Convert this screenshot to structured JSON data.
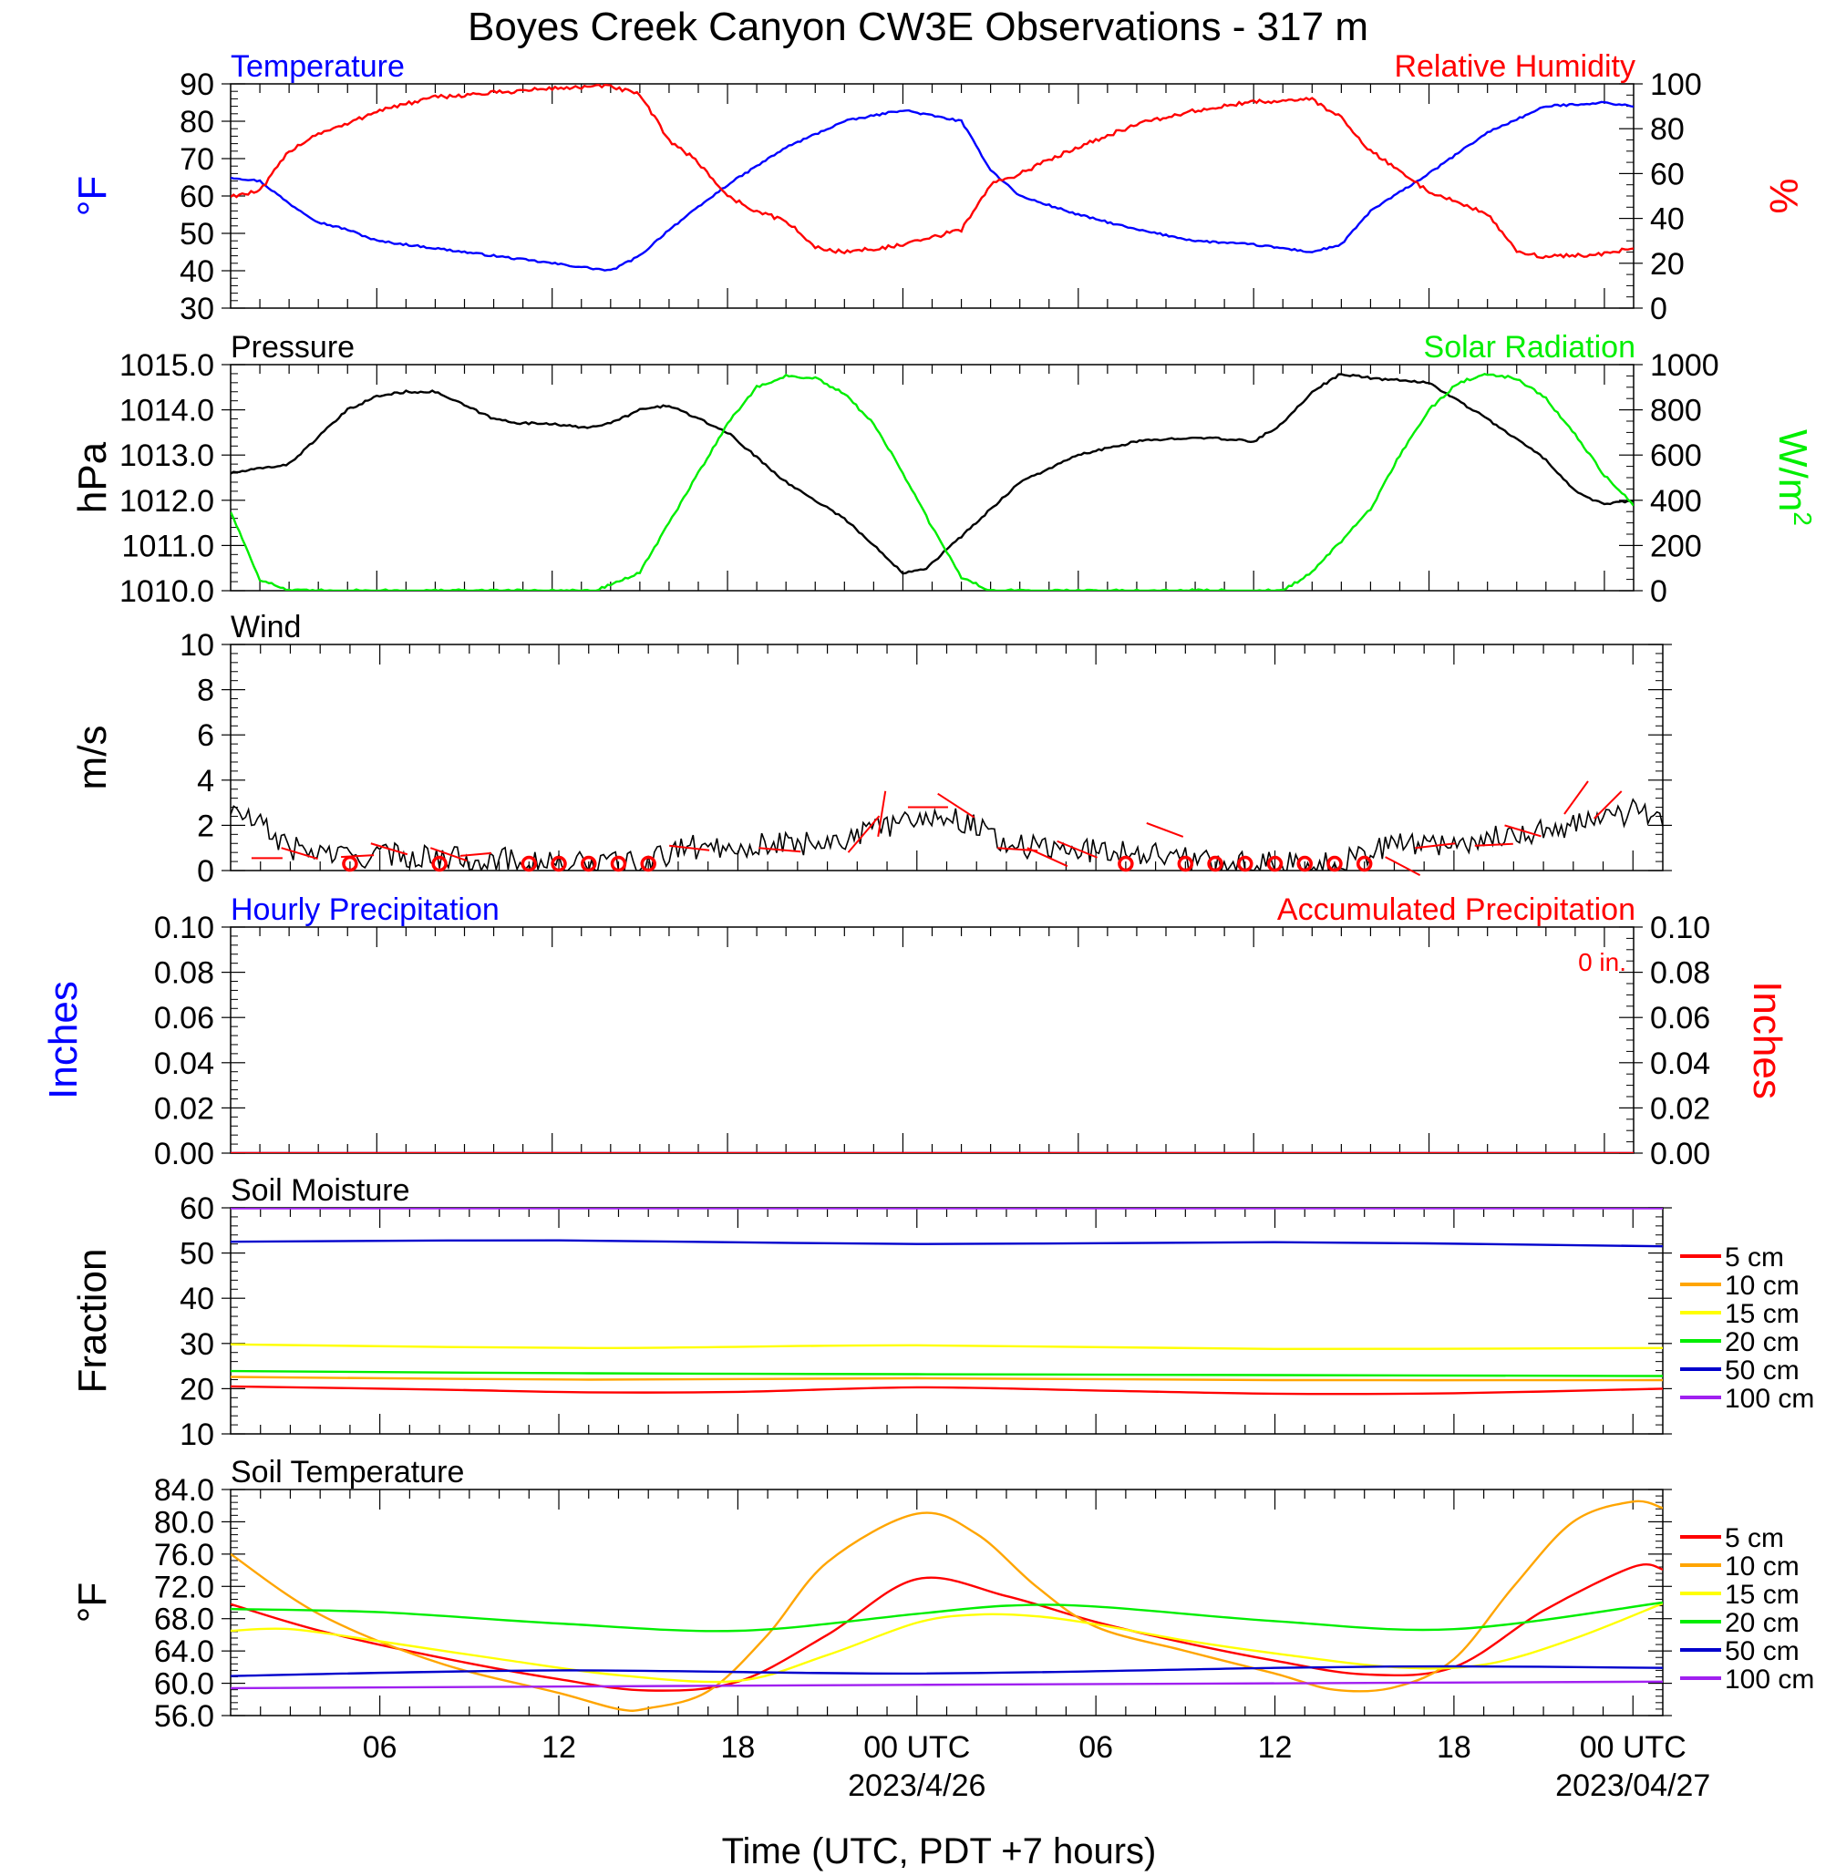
{
  "title": "Boyes Creek Canyon CW3E Observations - 317 m",
  "x_axis": {
    "label": "Time (UTC, PDT +7 hours)",
    "tick_labels": [
      "06",
      "12",
      "18",
      "00 UTC",
      "06",
      "12",
      "18",
      "00 UTC"
    ],
    "tick_hours": [
      6,
      12,
      18,
      24,
      30,
      36,
      42,
      48
    ],
    "date_labels": [
      {
        "hour": 24,
        "text": "2023/4/26"
      },
      {
        "hour": 48,
        "text": "2023/04/27"
      }
    ],
    "range_hours": [
      1,
      49
    ]
  },
  "colors": {
    "blue": "#0000ff",
    "red": "#ff0000",
    "green": "#00ee00",
    "black": "#000000",
    "orange": "#ffa500",
    "yellow": "#ffff00",
    "navy": "#0000cc",
    "purple": "#a020f0"
  },
  "chart_data": [
    {
      "id": "temp_rh",
      "type": "line",
      "left_title": "Temperature",
      "right_title": "Relative Humidity",
      "ylabel_left": "°F",
      "ylabel_right": "%",
      "ylim_left": [
        30,
        90
      ],
      "yticks_left": [
        "30",
        "40",
        "50",
        "60",
        "70",
        "80",
        "90"
      ],
      "ylim_right": [
        0,
        100
      ],
      "yticks_right": [
        "0",
        "20",
        "40",
        "60",
        "80",
        "100"
      ],
      "series": [
        {
          "name": "Temperature",
          "axis": "left",
          "color": "#0000ff",
          "x": [
            1,
            2,
            3,
            4,
            5,
            6,
            8,
            10,
            12,
            14,
            15,
            16,
            18,
            20,
            22,
            24,
            26,
            27,
            28,
            30,
            32,
            34,
            36,
            38,
            39,
            40,
            42,
            44,
            46,
            48,
            49
          ],
          "y": [
            65,
            64,
            58,
            53,
            51,
            48,
            46,
            44,
            42,
            40,
            44,
            51,
            63,
            73,
            80,
            83,
            80,
            67,
            60,
            55,
            51,
            48,
            47,
            45,
            47,
            56,
            66,
            77,
            84,
            85,
            84
          ]
        },
        {
          "name": "Relative Humidity",
          "axis": "right",
          "color": "#ff0000",
          "x": [
            1,
            2,
            3,
            4,
            5,
            6,
            8,
            10,
            12,
            14,
            15,
            16,
            17,
            18,
            19,
            20,
            21,
            22,
            24,
            26,
            27,
            28,
            30,
            32,
            34,
            36,
            38,
            39,
            40,
            42,
            44,
            45,
            46,
            48,
            49
          ],
          "y": [
            50,
            52,
            70,
            78,
            82,
            88,
            94,
            96,
            98,
            99,
            95,
            75,
            65,
            50,
            43,
            39,
            27,
            25,
            28,
            35,
            55,
            60,
            72,
            82,
            88,
            92,
            93,
            85,
            70,
            52,
            42,
            25,
            23,
            24,
            27
          ]
        }
      ]
    },
    {
      "id": "pressure_solar",
      "type": "line",
      "left_title": "Pressure",
      "right_title": "Solar Radiation",
      "ylabel_left": "hPa",
      "ylabel_right_base": "W/m",
      "ylabel_right_sup": "2",
      "ylim_left": [
        1010,
        1015
      ],
      "yticks_left": [
        "1010.0",
        "1011.0",
        "1012.0",
        "1013.0",
        "1014.0",
        "1015.0"
      ],
      "ylim_right": [
        0,
        1000
      ],
      "yticks_right": [
        "0",
        "200",
        "400",
        "600",
        "800",
        "1000"
      ],
      "series": [
        {
          "name": "Pressure",
          "axis": "left",
          "color": "#000000",
          "x": [
            1,
            3,
            4,
            5,
            6,
            7,
            8,
            10,
            11,
            12,
            13,
            14,
            15,
            16,
            18,
            20,
            22,
            24,
            24.8,
            26,
            28,
            30,
            32,
            34,
            36,
            37,
            38,
            39,
            40,
            42,
            44,
            46,
            47,
            48,
            49
          ],
          "y": [
            1012.6,
            1012.8,
            1013.4,
            1014.0,
            1014.3,
            1014.4,
            1014.4,
            1013.8,
            1013.7,
            1013.7,
            1013.6,
            1013.7,
            1014.0,
            1014.1,
            1013.5,
            1012.4,
            1011.6,
            1010.4,
            1010.5,
            1011.2,
            1012.4,
            1013.0,
            1013.3,
            1013.4,
            1013.3,
            1013.7,
            1014.4,
            1014.8,
            1014.7,
            1014.6,
            1013.8,
            1012.9,
            1012.2,
            1011.9,
            1012.0
          ]
        },
        {
          "name": "Solar Radiation",
          "axis": "right",
          "color": "#00ee00",
          "x": [
            1,
            2,
            3,
            12,
            13.5,
            15,
            16,
            17,
            18,
            19,
            20,
            21,
            22,
            23,
            24,
            25,
            26,
            27,
            28,
            37,
            38,
            40,
            41,
            42,
            43,
            44,
            45,
            46,
            47,
            48,
            49
          ],
          "y": [
            350,
            50,
            0,
            0,
            0,
            80,
            300,
            520,
            740,
            900,
            950,
            940,
            870,
            740,
            520,
            280,
            60,
            0,
            0,
            0,
            80,
            360,
            600,
            800,
            920,
            960,
            940,
            850,
            690,
            510,
            380
          ]
        }
      ]
    },
    {
      "id": "wind",
      "type": "line",
      "left_title": "Wind",
      "ylabel_left": "m/s",
      "ylim_left": [
        0,
        10
      ],
      "yticks_left": [
        "0",
        "2",
        "4",
        "6",
        "8",
        "10"
      ],
      "series": [
        {
          "name": "Wind",
          "axis": "left",
          "color": "#000000",
          "x": [
            1,
            2,
            3,
            4,
            5,
            6,
            8,
            10,
            12,
            14,
            15,
            16,
            18,
            20,
            22,
            23,
            24,
            25,
            26,
            27,
            28,
            30,
            32,
            33,
            34,
            35,
            36,
            38,
            40,
            42,
            44,
            46,
            48,
            49
          ],
          "y": [
            2.7,
            2.0,
            1.0,
            0.8,
            0.6,
            0.7,
            0.6,
            0.5,
            0.3,
            0.3,
            0.3,
            1.0,
            1.1,
            1.2,
            1.5,
            2.0,
            2.4,
            2.4,
            2.0,
            1.2,
            1.0,
            0.9,
            0.8,
            0.5,
            0.3,
            0.3,
            0.3,
            0.3,
            1.2,
            1.2,
            1.6,
            2.0,
            2.6,
            2.4
          ]
        }
      ],
      "barbs": [
        {
          "x": 1.7,
          "y": 0.55,
          "dx": 34,
          "dy": 0
        },
        {
          "x": 2.7,
          "y": 1.0,
          "dx": 40,
          "dy": 12
        },
        {
          "x": 4.7,
          "y": 0.6,
          "dx": 36,
          "dy": -2
        },
        {
          "x": 5.7,
          "y": 1.2,
          "dx": 40,
          "dy": 12
        },
        {
          "x": 7.7,
          "y": 1.0,
          "dx": 40,
          "dy": 14
        },
        {
          "x": 8.7,
          "y": 0.65,
          "dx": 34,
          "dy": -3
        },
        {
          "x": 15.7,
          "y": 1.1,
          "dx": 44,
          "dy": 5
        },
        {
          "x": 18.7,
          "y": 1.0,
          "dx": 46,
          "dy": 4
        },
        {
          "x": 21.7,
          "y": 0.8,
          "dx": 34,
          "dy": -40
        },
        {
          "x": 22.7,
          "y": 1.5,
          "dx": 8,
          "dy": -50
        },
        {
          "x": 23.7,
          "y": 2.8,
          "dx": 44,
          "dy": 0
        },
        {
          "x": 24.7,
          "y": 3.4,
          "dx": 40,
          "dy": 26
        },
        {
          "x": 26.7,
          "y": 1.0,
          "dx": 44,
          "dy": 3
        },
        {
          "x": 27.7,
          "y": 1.0,
          "dx": 44,
          "dy": 20
        },
        {
          "x": 28.7,
          "y": 1.3,
          "dx": 44,
          "dy": 18
        },
        {
          "x": 31.7,
          "y": 2.1,
          "dx": 40,
          "dy": 15
        },
        {
          "x": 39.7,
          "y": 0.6,
          "dx": 38,
          "dy": 20
        },
        {
          "x": 40.7,
          "y": 1.0,
          "dx": 44,
          "dy": -5
        },
        {
          "x": 42.7,
          "y": 1.1,
          "dx": 42,
          "dy": -2
        },
        {
          "x": 43.7,
          "y": 2.0,
          "dx": 40,
          "dy": 12
        },
        {
          "x": 45.7,
          "y": 2.5,
          "dx": 26,
          "dy": -36
        },
        {
          "x": 46.7,
          "y": 2.3,
          "dx": 30,
          "dy": -30
        }
      ],
      "calm_hours": [
        5,
        8,
        11,
        12,
        13,
        14,
        15,
        31,
        33,
        34,
        35,
        36,
        37,
        38,
        39
      ]
    },
    {
      "id": "precip",
      "type": "line",
      "left_title": "Hourly Precipitation",
      "right_title": "Accumulated Precipitation",
      "annotation": "0 in.",
      "ylabel_left": "Inches",
      "ylabel_right": "Inches",
      "ylim_left": [
        0,
        0.1
      ],
      "yticks_left": [
        "0.00",
        "0.02",
        "0.04",
        "0.06",
        "0.08",
        "0.10"
      ],
      "ylim_right": [
        0,
        0.1
      ],
      "yticks_right": [
        "0.00",
        "0.02",
        "0.04",
        "0.06",
        "0.08",
        "0.10"
      ],
      "series": [
        {
          "name": "Hourly Precipitation",
          "axis": "left",
          "color": "#0000ff",
          "x": [
            1,
            49
          ],
          "y": [
            0,
            0
          ]
        },
        {
          "name": "Accumulated Precipitation",
          "axis": "right",
          "color": "#ff0000",
          "x": [
            1,
            49
          ],
          "y": [
            0,
            0
          ]
        }
      ]
    },
    {
      "id": "soil_moisture",
      "type": "line",
      "left_title": "Soil Moisture",
      "ylabel_left": "Fraction",
      "ylim_left": [
        10,
        60
      ],
      "yticks_left": [
        "10",
        "20",
        "30",
        "40",
        "50",
        "60"
      ],
      "legend": [
        "5 cm",
        "10 cm",
        "15 cm",
        "20 cm",
        "50 cm",
        "100 cm"
      ],
      "series": [
        {
          "name": "5 cm",
          "color": "#ff0000",
          "x": [
            1,
            8,
            13,
            18,
            24,
            30,
            36,
            42,
            49
          ],
          "y": [
            20.5,
            19.8,
            19.2,
            19.3,
            20.3,
            19.6,
            18.9,
            19.0,
            20.0
          ]
        },
        {
          "name": "10 cm",
          "color": "#ffa500",
          "x": [
            1,
            13,
            24,
            36,
            49
          ],
          "y": [
            22.6,
            22.0,
            22.3,
            21.9,
            21.9
          ]
        },
        {
          "name": "15 cm",
          "color": "#ffff00",
          "x": [
            1,
            13,
            24,
            36,
            49
          ],
          "y": [
            29.8,
            29.0,
            29.6,
            28.8,
            29.0
          ]
        },
        {
          "name": "20 cm",
          "color": "#00ee00",
          "x": [
            1,
            13,
            24,
            36,
            49
          ],
          "y": [
            23.9,
            23.4,
            23.2,
            23.0,
            22.8
          ]
        },
        {
          "name": "50 cm",
          "color": "#0000cc",
          "x": [
            1,
            12,
            24,
            36,
            49
          ],
          "y": [
            52.5,
            52.8,
            52.0,
            52.4,
            51.5
          ]
        },
        {
          "name": "100 cm",
          "color": "#a020f0",
          "x": [
            1,
            49
          ],
          "y": [
            59.9,
            59.9
          ]
        }
      ]
    },
    {
      "id": "soil_temperature",
      "type": "line",
      "left_title": "Soil Temperature",
      "ylabel_left": "°F",
      "ylim_left": [
        56,
        84
      ],
      "yticks_left": [
        "56.0",
        "60.0",
        "64.0",
        "68.0",
        "72.0",
        "76.0",
        "80.0",
        "84.0"
      ],
      "legend": [
        "5 cm",
        "10 cm",
        "15 cm",
        "20 cm",
        "50 cm",
        "100 cm"
      ],
      "series": [
        {
          "name": "5 cm",
          "color": "#ff0000",
          "x": [
            1,
            4,
            8,
            12,
            15,
            18,
            21,
            24,
            27,
            30,
            33,
            36,
            39,
            42,
            45,
            48,
            49
          ],
          "y": [
            69.8,
            66.5,
            63.2,
            60.5,
            59.1,
            60.2,
            66.0,
            72.9,
            70.8,
            67.6,
            65.0,
            62.8,
            61.1,
            62.0,
            69.0,
            74.4,
            74.1
          ]
        },
        {
          "name": "10 cm",
          "color": "#ffa500",
          "x": [
            1,
            4,
            8,
            12,
            14,
            15,
            17,
            19,
            21,
            24,
            26,
            28,
            30,
            33,
            36,
            38,
            40,
            42,
            44,
            46,
            48,
            49
          ],
          "y": [
            76.0,
            68.5,
            62.5,
            58.8,
            56.8,
            56.9,
            59.0,
            66.0,
            75.0,
            81.0,
            78.5,
            72.0,
            67.0,
            64.0,
            61.2,
            59.2,
            59.5,
            63.0,
            72.0,
            80.0,
            82.5,
            81.7
          ]
        },
        {
          "name": "15 cm",
          "color": "#ffff00",
          "x": [
            1,
            3,
            6,
            10,
            14,
            18,
            21,
            24,
            26,
            28,
            30,
            33,
            36,
            40,
            43,
            46,
            49
          ],
          "y": [
            66.5,
            66.7,
            65.2,
            63.0,
            61.0,
            60.3,
            63.5,
            67.5,
            68.5,
            68.3,
            67.3,
            65.3,
            63.7,
            62.0,
            62.3,
            65.5,
            69.9
          ]
        },
        {
          "name": "20 cm",
          "color": "#00ee00",
          "x": [
            1,
            6,
            12,
            18,
            24,
            27,
            30,
            36,
            42,
            49
          ],
          "y": [
            69.2,
            68.8,
            67.4,
            66.5,
            68.6,
            69.6,
            69.5,
            67.7,
            66.7,
            70.0
          ]
        },
        {
          "name": "50 cm",
          "color": "#0000cc",
          "x": [
            1,
            12,
            24,
            36,
            42,
            49
          ],
          "y": [
            60.9,
            61.6,
            61.2,
            61.9,
            62.1,
            61.9
          ]
        },
        {
          "name": "100 cm",
          "color": "#a020f0",
          "x": [
            1,
            24,
            49
          ],
          "y": [
            59.4,
            59.8,
            60.2
          ]
        }
      ]
    }
  ]
}
